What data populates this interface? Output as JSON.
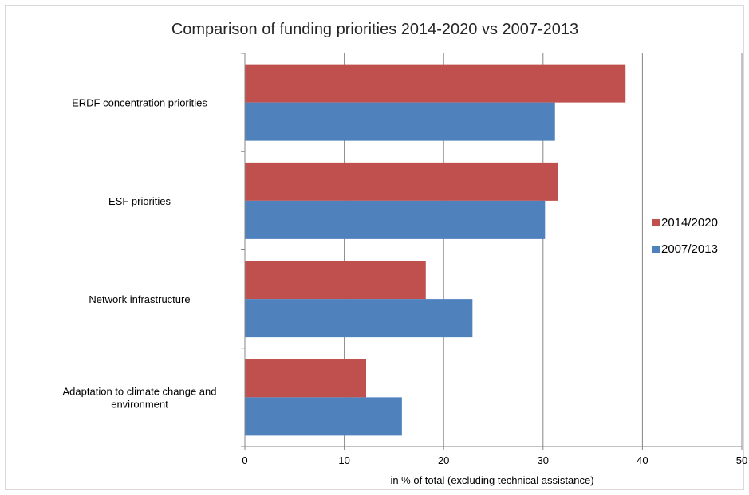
{
  "chart_data": {
    "type": "bar",
    "orientation": "horizontal",
    "title": "Comparison of funding priorities 2014-2020 vs 2007-2013",
    "xlabel": "in % of total (excluding technical assistance)",
    "ylabel": "",
    "xlim": [
      0,
      50
    ],
    "xticks": [
      0,
      10,
      20,
      30,
      40,
      50
    ],
    "grid": true,
    "legend_position": "right",
    "categories": [
      [
        "ERDF concentration priorities"
      ],
      [
        "ESF priorities"
      ],
      [
        "Network infrastructure"
      ],
      [
        "Adaptation to climate change and",
        "environment"
      ]
    ],
    "series": [
      {
        "name": "2014/2020",
        "color": "#C0504D",
        "values": [
          38.3,
          31.5,
          18.2,
          12.2
        ]
      },
      {
        "name": "2007/2013",
        "color": "#4F81BD",
        "values": [
          31.2,
          30.2,
          22.9,
          15.8
        ]
      }
    ]
  }
}
